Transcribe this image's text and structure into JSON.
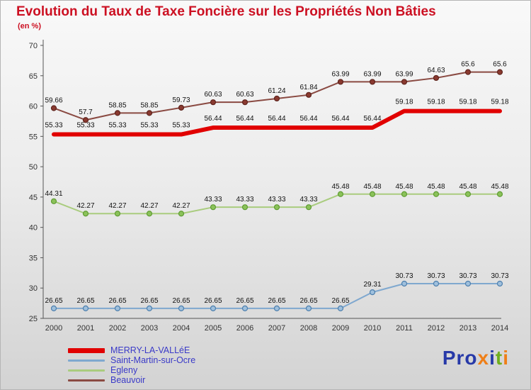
{
  "title": "Evolution du Taux de Taxe Foncière sur les Propriétés Non Bâties",
  "subtitle": "(en %)",
  "colors": {
    "title": "#cc1022",
    "legend_text": "#3a3ac8",
    "axis": "#555555",
    "tick_label": "#333333",
    "data_label": "#111111"
  },
  "chart_data": {
    "type": "line",
    "title": "Evolution du Taux de Taxe Foncière sur les Propriétés Non Bâties",
    "xlabel": "",
    "ylabel": "en %",
    "ylim": [
      25,
      70
    ],
    "ytick_step": 5,
    "grid": false,
    "legend_position": "bottom-left",
    "categories": [
      "2000",
      "2001",
      "2002",
      "2003",
      "2004",
      "2005",
      "2006",
      "2007",
      "2008",
      "2009",
      "2010",
      "2011",
      "2012",
      "2013",
      "2014"
    ],
    "draw_order": [
      1,
      2,
      3,
      0
    ],
    "series": [
      {
        "name": "MERRY-LA-VALLéE",
        "color": "#e10000",
        "line_width": 6,
        "marker": false,
        "label_offset": 10,
        "legend_swatch_height": 7,
        "values": [
          55.33,
          55.33,
          55.33,
          55.33,
          55.33,
          56.44,
          56.44,
          56.44,
          56.44,
          56.44,
          56.44,
          59.18,
          59.18,
          59.18,
          59.18
        ]
      },
      {
        "name": "Saint-Martin-sur-Ocre",
        "color": "#7fa8cf",
        "line_width": 2,
        "marker": true,
        "marker_fill": "#9fc0dd",
        "marker_stroke": "#4d7fad",
        "label_offset": 8,
        "legend_swatch_height": 3,
        "values": [
          26.65,
          26.65,
          26.65,
          26.65,
          26.65,
          26.65,
          26.65,
          26.65,
          26.65,
          26.65,
          29.31,
          30.73,
          30.73,
          30.73,
          30.73
        ]
      },
      {
        "name": "Egleny",
        "color": "#a9cc7e",
        "line_width": 2,
        "marker": true,
        "marker_fill": "#8bc25a",
        "marker_stroke": "#5f9c33",
        "label_offset": 8,
        "legend_swatch_height": 3,
        "values": [
          44.31,
          42.27,
          42.27,
          42.27,
          42.27,
          43.33,
          43.33,
          43.33,
          43.33,
          45.48,
          45.48,
          45.48,
          45.48,
          45.48,
          45.48
        ]
      },
      {
        "name": "Beauvoir",
        "color": "#8a4a42",
        "line_width": 2,
        "marker": true,
        "marker_fill": "#8a3a30",
        "marker_stroke": "#5e241d",
        "label_offset": 8,
        "legend_swatch_height": 3,
        "values": [
          59.66,
          57.7,
          58.85,
          58.85,
          59.73,
          60.63,
          60.63,
          61.24,
          61.84,
          63.99,
          63.99,
          63.99,
          64.63,
          65.6,
          65.6
        ]
      }
    ]
  },
  "legend": {
    "items": [
      "MERRY-LA-VALLéE",
      "Saint-Martin-sur-Ocre",
      "Egleny",
      "Beauvoir"
    ]
  },
  "logo": {
    "text": "Proxiti",
    "letters": [
      {
        "ch": "P",
        "color": "#2739a8"
      },
      {
        "ch": "r",
        "color": "#2739a8"
      },
      {
        "ch": "o",
        "color": "#2739a8"
      },
      {
        "ch": "x",
        "color": "#ef7f17"
      },
      {
        "ch": "i",
        "color": "#2739a8"
      },
      {
        "ch": "t",
        "color": "#6fae1e"
      },
      {
        "ch": "i",
        "color": "#ef7f17"
      }
    ]
  }
}
